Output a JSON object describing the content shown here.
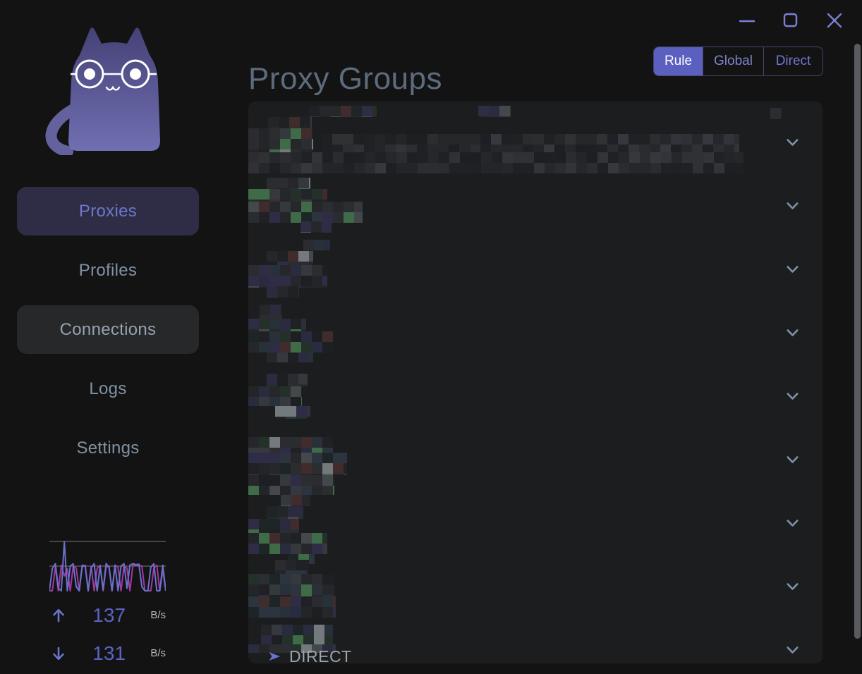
{
  "window": {
    "controls": {
      "minimize": "minimize",
      "maximize": "maximize",
      "close": "close"
    }
  },
  "sidebar": {
    "nav": [
      {
        "label": "Proxies",
        "state": "active"
      },
      {
        "label": "Profiles",
        "state": "normal"
      },
      {
        "label": "Connections",
        "state": "hover"
      },
      {
        "label": "Logs",
        "state": "normal"
      },
      {
        "label": "Settings",
        "state": "normal"
      }
    ],
    "traffic": {
      "up_value": "137",
      "up_unit": "B/s",
      "down_value": "131",
      "down_unit": "B/s",
      "graph": {
        "up_color": "#6a71cc",
        "down_color": "#a039a0",
        "grid_color": "#9a9a9a",
        "up_series": [
          0,
          45,
          55,
          5,
          0,
          100,
          0,
          50,
          55,
          8,
          0,
          52,
          50,
          0,
          46,
          55,
          0,
          50,
          2,
          55,
          48,
          0,
          52,
          0,
          50,
          55,
          5,
          52,
          55,
          53,
          54,
          8,
          0,
          0,
          48,
          55,
          0,
          0,
          52,
          0
        ],
        "down_series": [
          0,
          0,
          48,
          0,
          52,
          30,
          45,
          0,
          50,
          46,
          0,
          48,
          52,
          0,
          50,
          0,
          45,
          52,
          0,
          48,
          50,
          0,
          52,
          48,
          0,
          50,
          46,
          0,
          53,
          51,
          52,
          50,
          0,
          0,
          0,
          46,
          52,
          0,
          42,
          0
        ]
      }
    }
  },
  "header": {
    "title": "Proxy Groups",
    "modes": [
      {
        "label": "Rule",
        "selected": true
      },
      {
        "label": "Global",
        "selected": false
      },
      {
        "label": "Direct",
        "selected": false
      }
    ]
  },
  "main": {
    "direct_label": "DIRECT",
    "mosaic": {
      "block": 15,
      "plain": [
        "#202125",
        "#26272b",
        "#2b2d31",
        "#1d1f22",
        "#232528",
        "#2f3135",
        "#35383d",
        "#26272b",
        "#202125",
        "#2a2c30",
        "#1e2023",
        "#323439"
      ],
      "accent": [
        "#202125",
        "#26272b",
        "#2b2d31",
        "#1d1f22",
        "#2c3440",
        "#283039",
        "#2b2b40",
        "#2e2d45",
        "#24302a",
        "#1d2527",
        "#3f6b47",
        "#74797e",
        "#402c2c",
        "#44484b",
        "#35383d",
        "#2a2c30",
        "#232528",
        "#26272b"
      ]
    },
    "groups": [
      {
        "strips": [
          [
            86,
            6,
            96,
            16
          ],
          [
            326,
            6,
            46,
            16
          ],
          [
            740,
            9,
            16,
            16
          ],
          [
            28,
            22,
            62,
            32
          ],
          [
            0,
            38,
            92,
            48
          ],
          [
            104,
            46,
            592,
            28
          ],
          [
            0,
            72,
            702,
            30
          ]
        ]
      },
      {
        "strips": [
          [
            26,
            108,
            62,
            16
          ],
          [
            0,
            124,
            112,
            18
          ],
          [
            0,
            142,
            162,
            30
          ],
          [
            74,
            170,
            44,
            16
          ]
        ]
      },
      {
        "strips": [
          [
            78,
            196,
            38,
            16
          ],
          [
            26,
            212,
            66,
            20
          ],
          [
            0,
            232,
            112,
            32
          ],
          [
            26,
            262,
            46,
            16
          ]
        ]
      },
      {
        "strips": [
          [
            16,
            288,
            32,
            20
          ],
          [
            0,
            308,
            82,
            18
          ],
          [
            0,
            326,
            120,
            30
          ],
          [
            26,
            356,
            66,
            14
          ]
        ]
      },
      {
        "strips": [
          [
            26,
            386,
            58,
            18
          ],
          [
            0,
            404,
            76,
            28
          ],
          [
            38,
            432,
            50,
            18
          ]
        ]
      },
      {
        "strips": [
          [
            0,
            476,
            120,
            22
          ],
          [
            0,
            498,
            140,
            32
          ],
          [
            0,
            530,
            122,
            28
          ],
          [
            46,
            558,
            42,
            16
          ]
        ]
      },
      {
        "strips": [
          [
            26,
            574,
            52,
            18
          ],
          [
            0,
            592,
            72,
            20
          ],
          [
            0,
            612,
            112,
            30
          ],
          [
            56,
            642,
            38,
            14
          ]
        ]
      },
      {
        "strips": [
          [
            38,
            650,
            48,
            20
          ],
          [
            0,
            670,
            122,
            32
          ],
          [
            0,
            702,
            124,
            30
          ]
        ]
      },
      {
        "strips": [
          [
            18,
            742,
            102,
            28
          ],
          [
            0,
            770,
            124,
            12
          ]
        ]
      }
    ]
  },
  "colors": {
    "accent": "#5a5fc0",
    "purple_text": "#6e77cc",
    "titlebar_icon": "#7b80d2",
    "chevron": "#7f93a8",
    "direct_arrow": "#6b74cc",
    "panel_bg": "#1c1d1f",
    "window_bg": "#131314",
    "scrollbar": "#595b5e"
  }
}
